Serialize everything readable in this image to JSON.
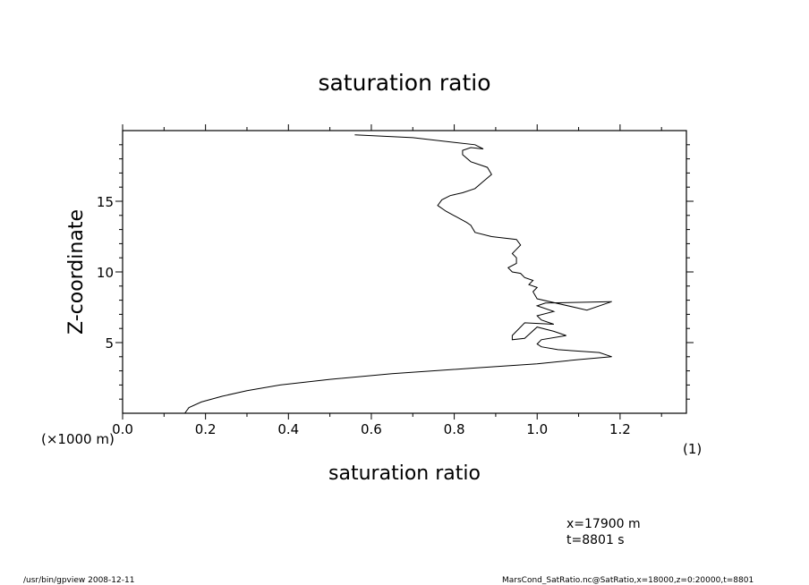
{
  "chart_data": {
    "type": "line",
    "title": "saturation ratio",
    "xlabel": "saturation ratio",
    "x_unit": "(1)",
    "ylabel": "Z-coordinate",
    "y_unit": "(×1000 m)",
    "xlim": [
      0.0,
      1.36
    ],
    "ylim": [
      0,
      20
    ],
    "x_ticks": [
      0.0,
      0.2,
      0.4,
      0.6,
      0.8,
      1.0,
      1.2
    ],
    "x_tick_labels": [
      "0.0",
      "0.2",
      "0.4",
      "0.6",
      "0.8",
      "1.0",
      "1.2"
    ],
    "y_ticks": [
      5,
      10,
      15
    ],
    "y_tick_labels": [
      "5",
      "10",
      "15"
    ],
    "x_minor_step": 0.1,
    "y_minor_step": 1,
    "grid": false,
    "series": [
      {
        "x": [
          0.15,
          0.16,
          0.19,
          0.24,
          0.3,
          0.38,
          0.5,
          0.65,
          0.85,
          1.0,
          1.1,
          1.18,
          1.15,
          1.05,
          1.01,
          1.0,
          1.01,
          1.07,
          1.04,
          1.0,
          0.97,
          0.94,
          0.94,
          0.97,
          1.04,
          1.01,
          1.0,
          1.04,
          1.0,
          1.02,
          1.18,
          1.12,
          1.0,
          0.99,
          1.0,
          0.98,
          0.99,
          0.97,
          0.96,
          0.94,
          0.93,
          0.95,
          0.95,
          0.94,
          0.95,
          0.96,
          0.95,
          0.89,
          0.85,
          0.84,
          0.83,
          0.78,
          0.76,
          0.77,
          0.79,
          0.82,
          0.85,
          0.87,
          0.89,
          0.88,
          0.84,
          0.82,
          0.82,
          0.84,
          0.87,
          0.85,
          0.7,
          0.56
        ],
        "y": [
          0.0,
          0.4,
          0.8,
          1.2,
          1.6,
          2.0,
          2.4,
          2.8,
          3.2,
          3.5,
          3.8,
          4.0,
          4.3,
          4.5,
          4.7,
          4.9,
          5.2,
          5.5,
          5.8,
          6.1,
          5.3,
          5.2,
          5.5,
          6.4,
          6.3,
          6.6,
          6.9,
          7.2,
          7.6,
          7.8,
          7.9,
          7.3,
          8.1,
          8.6,
          8.9,
          9.1,
          9.4,
          9.6,
          9.9,
          10.0,
          10.3,
          10.6,
          11.0,
          11.3,
          11.6,
          11.9,
          12.3,
          12.5,
          12.8,
          13.3,
          13.5,
          14.3,
          14.7,
          15.1,
          15.4,
          15.6,
          15.9,
          16.4,
          16.9,
          17.4,
          17.8,
          18.3,
          18.6,
          18.8,
          18.7,
          19.0,
          19.5,
          19.7
        ]
      }
    ]
  },
  "annotations": {
    "x_pos": "x=17900  m",
    "time": "t=8801  s"
  },
  "footer": {
    "left": "/usr/bin/gpview   2008-12-11",
    "right": "MarsCond_SatRatio.nc@SatRatio,x=18000,z=0:20000,t=8801"
  }
}
